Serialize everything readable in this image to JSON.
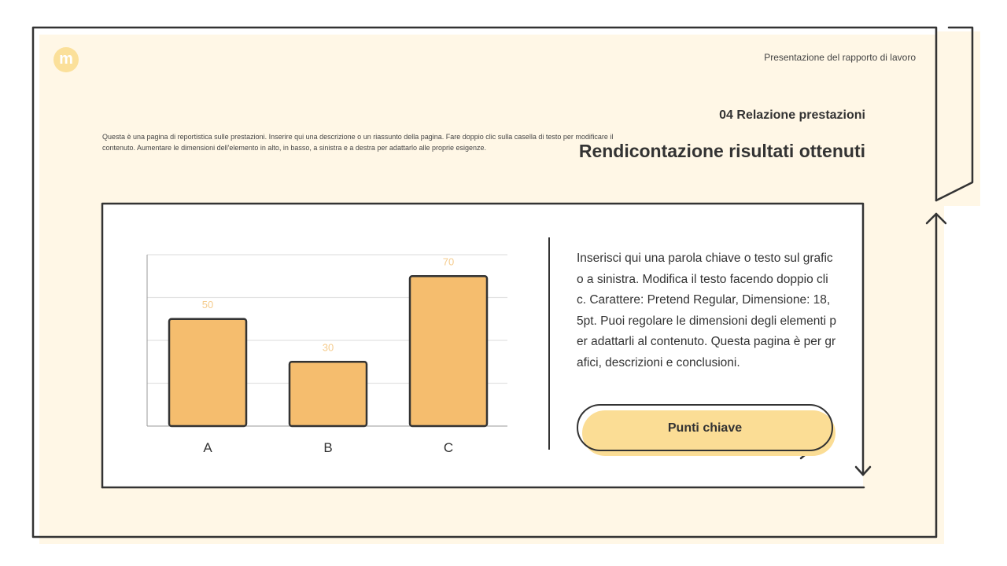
{
  "header": {
    "logo_letter": "m",
    "document_title": "Presentazione del rapporto di lavoro",
    "section": "04 Relazione prestazioni",
    "title": "Rendicontazione risultati ottenuti",
    "description": "Questa è una pagina di reportistica sulle prestazioni. Inserire qui una descrizione o un riassunto della pagina. Fare doppio clic sulla casella di testo per modificare il contenuto. Aumentare le dimensioni dell'elemento in alto, in basso, a sinistra e a destra per adattarlo alle proprie esigenze."
  },
  "main": {
    "body_text": "Inserisci qui una parola chiave o testo sul grafico a sinistra. Modifica il testo facendo doppio clic. Carattere: Pretend Regular, Dimensione: 18,5pt. Puoi regolare le dimensioni degli elementi per adattarli al contenuto. Questa pagina è per grafici, descrizioni e conclusioni.",
    "button_label": "Punti chiave"
  },
  "colors": {
    "background": "#fff7e6",
    "bar": "#f5bd6e",
    "button": "#fbdd95",
    "outline": "#333333",
    "label": "#f5cc8e"
  },
  "chart_data": {
    "type": "bar",
    "categories": [
      "A",
      "B",
      "C"
    ],
    "values": [
      50,
      30,
      70
    ],
    "data_labels": [
      "50",
      "30",
      "70"
    ],
    "ylim": [
      0,
      80
    ],
    "grid": true
  }
}
